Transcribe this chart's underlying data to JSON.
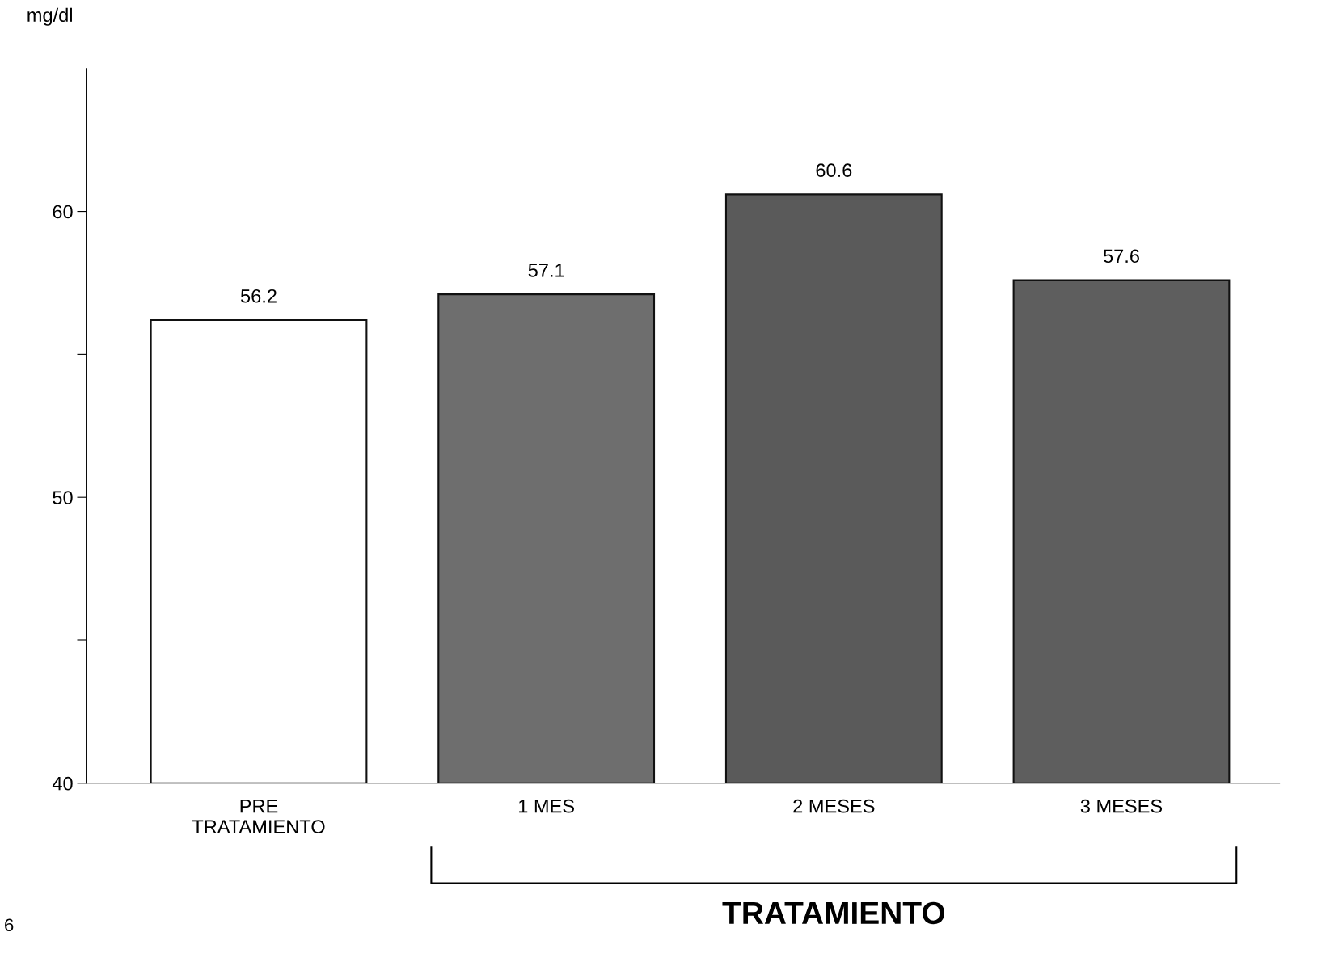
{
  "chart_data": {
    "type": "bar",
    "ylabel": "mg/dl",
    "categories": [
      "PRE\nTRATAMIENTO",
      "1 MES",
      "2 MESES",
      "3 MESES"
    ],
    "values": [
      56.2,
      57.1,
      60.6,
      57.6
    ],
    "colors": [
      "#ffffff",
      "#6e6e6e",
      "#5a5a5a",
      "#5e5e5e"
    ],
    "ylim": [
      40,
      65
    ],
    "yticks": [
      40,
      {
        "value": 45,
        "label": null
      },
      50,
      {
        "value": 55,
        "label": null
      },
      60
    ],
    "data_labels": true,
    "grid": false,
    "annotations": [
      "TRATAMIENTO",
      "6"
    ]
  }
}
